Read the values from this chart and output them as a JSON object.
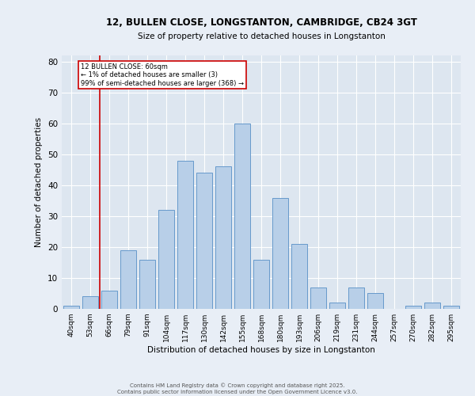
{
  "title_line1": "12, BULLEN CLOSE, LONGSTANTON, CAMBRIDGE, CB24 3GT",
  "title_line2": "Size of property relative to detached houses in Longstanton",
  "xlabel": "Distribution of detached houses by size in Longstanton",
  "ylabel": "Number of detached properties",
  "categories": [
    "40sqm",
    "53sqm",
    "66sqm",
    "79sqm",
    "91sqm",
    "104sqm",
    "117sqm",
    "130sqm",
    "142sqm",
    "155sqm",
    "168sqm",
    "180sqm",
    "193sqm",
    "206sqm",
    "219sqm",
    "231sqm",
    "244sqm",
    "257sqm",
    "270sqm",
    "282sqm",
    "295sqm"
  ],
  "values": [
    1,
    4,
    6,
    19,
    16,
    32,
    48,
    44,
    46,
    60,
    16,
    36,
    21,
    7,
    2,
    7,
    5,
    0,
    1,
    2,
    1
  ],
  "bar_color": "#b8cfe8",
  "bar_edge_color": "#6699cc",
  "background_color": "#dde6f0",
  "fig_background_color": "#e8eef6",
  "grid_color": "#ffffff",
  "vline_color": "#cc0000",
  "vline_x_index": 1.5,
  "annotation_text_line1": "12 BULLEN CLOSE: 60sqm",
  "annotation_text_line2": "← 1% of detached houses are smaller (3)",
  "annotation_text_line3": "99% of semi-detached houses are larger (368) →",
  "ylim": [
    0,
    82
  ],
  "yticks": [
    0,
    10,
    20,
    30,
    40,
    50,
    60,
    70,
    80
  ],
  "footer_line1": "Contains HM Land Registry data © Crown copyright and database right 2025.",
  "footer_line2": "Contains public sector information licensed under the Open Government Licence v3.0."
}
